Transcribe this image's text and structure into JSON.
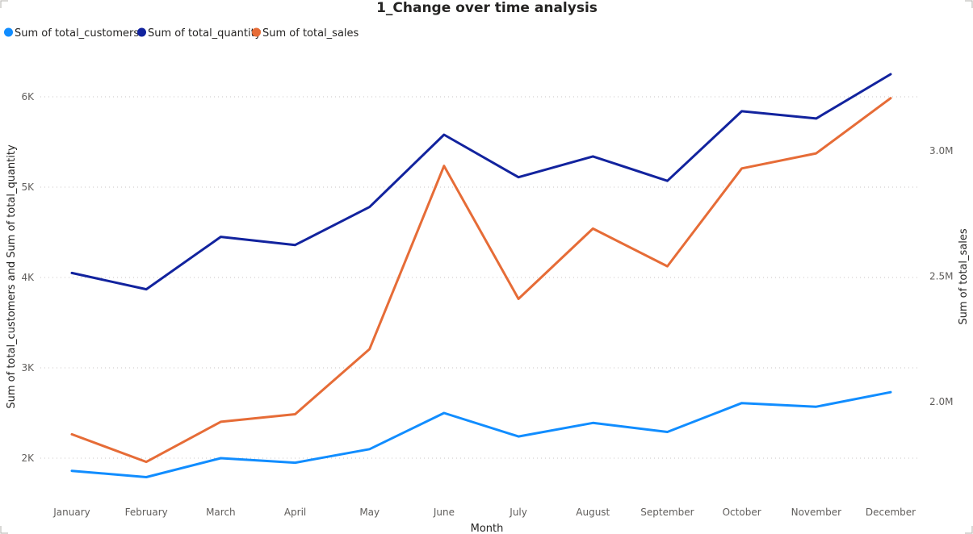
{
  "chart_data": {
    "type": "line",
    "title": "1_Change over time analysis",
    "xlabel": "Month",
    "ylabel_left": "Sum of total_customers and Sum of total_quantity",
    "ylabel_right": "Sum of total_sales",
    "categories": [
      "January",
      "February",
      "March",
      "April",
      "May",
      "June",
      "July",
      "August",
      "September",
      "October",
      "November",
      "December"
    ],
    "y_left_ticks": [
      {
        "value": 2000,
        "label": "2K"
      },
      {
        "value": 3000,
        "label": "3K"
      },
      {
        "value": 4000,
        "label": "4K"
      },
      {
        "value": 5000,
        "label": "5K"
      },
      {
        "value": 6000,
        "label": "6K"
      }
    ],
    "y_right_ticks": [
      {
        "value": 2000000,
        "label": "2.0M"
      },
      {
        "value": 2500000,
        "label": "2.5M"
      },
      {
        "value": 3000000,
        "label": "3.0M"
      }
    ],
    "ylim_left": [
      1500,
      6550
    ],
    "ylim_right": [
      1500000,
      3300000
    ],
    "grid": true,
    "legend_position": "top-left",
    "series": [
      {
        "name": "Sum of total_customers",
        "axis": "left",
        "color": "#118DFF",
        "values": [
          1860,
          1790,
          2000,
          1950,
          2100,
          2500,
          2240,
          2390,
          2290,
          2610,
          2570,
          2730
        ]
      },
      {
        "name": "Sum of total_quantity",
        "axis": "left",
        "color": "#12239E",
        "values": [
          4050,
          3870,
          4450,
          4360,
          4780,
          5580,
          5110,
          5340,
          5070,
          5840,
          5760,
          6250
        ]
      },
      {
        "name": "Sum of total_sales",
        "axis": "right",
        "color": "#E66C37",
        "values": [
          1870000,
          1760000,
          1920000,
          1950000,
          2210000,
          2940000,
          2410000,
          2690000,
          2540000,
          2930000,
          2990000,
          3210000
        ]
      }
    ]
  }
}
